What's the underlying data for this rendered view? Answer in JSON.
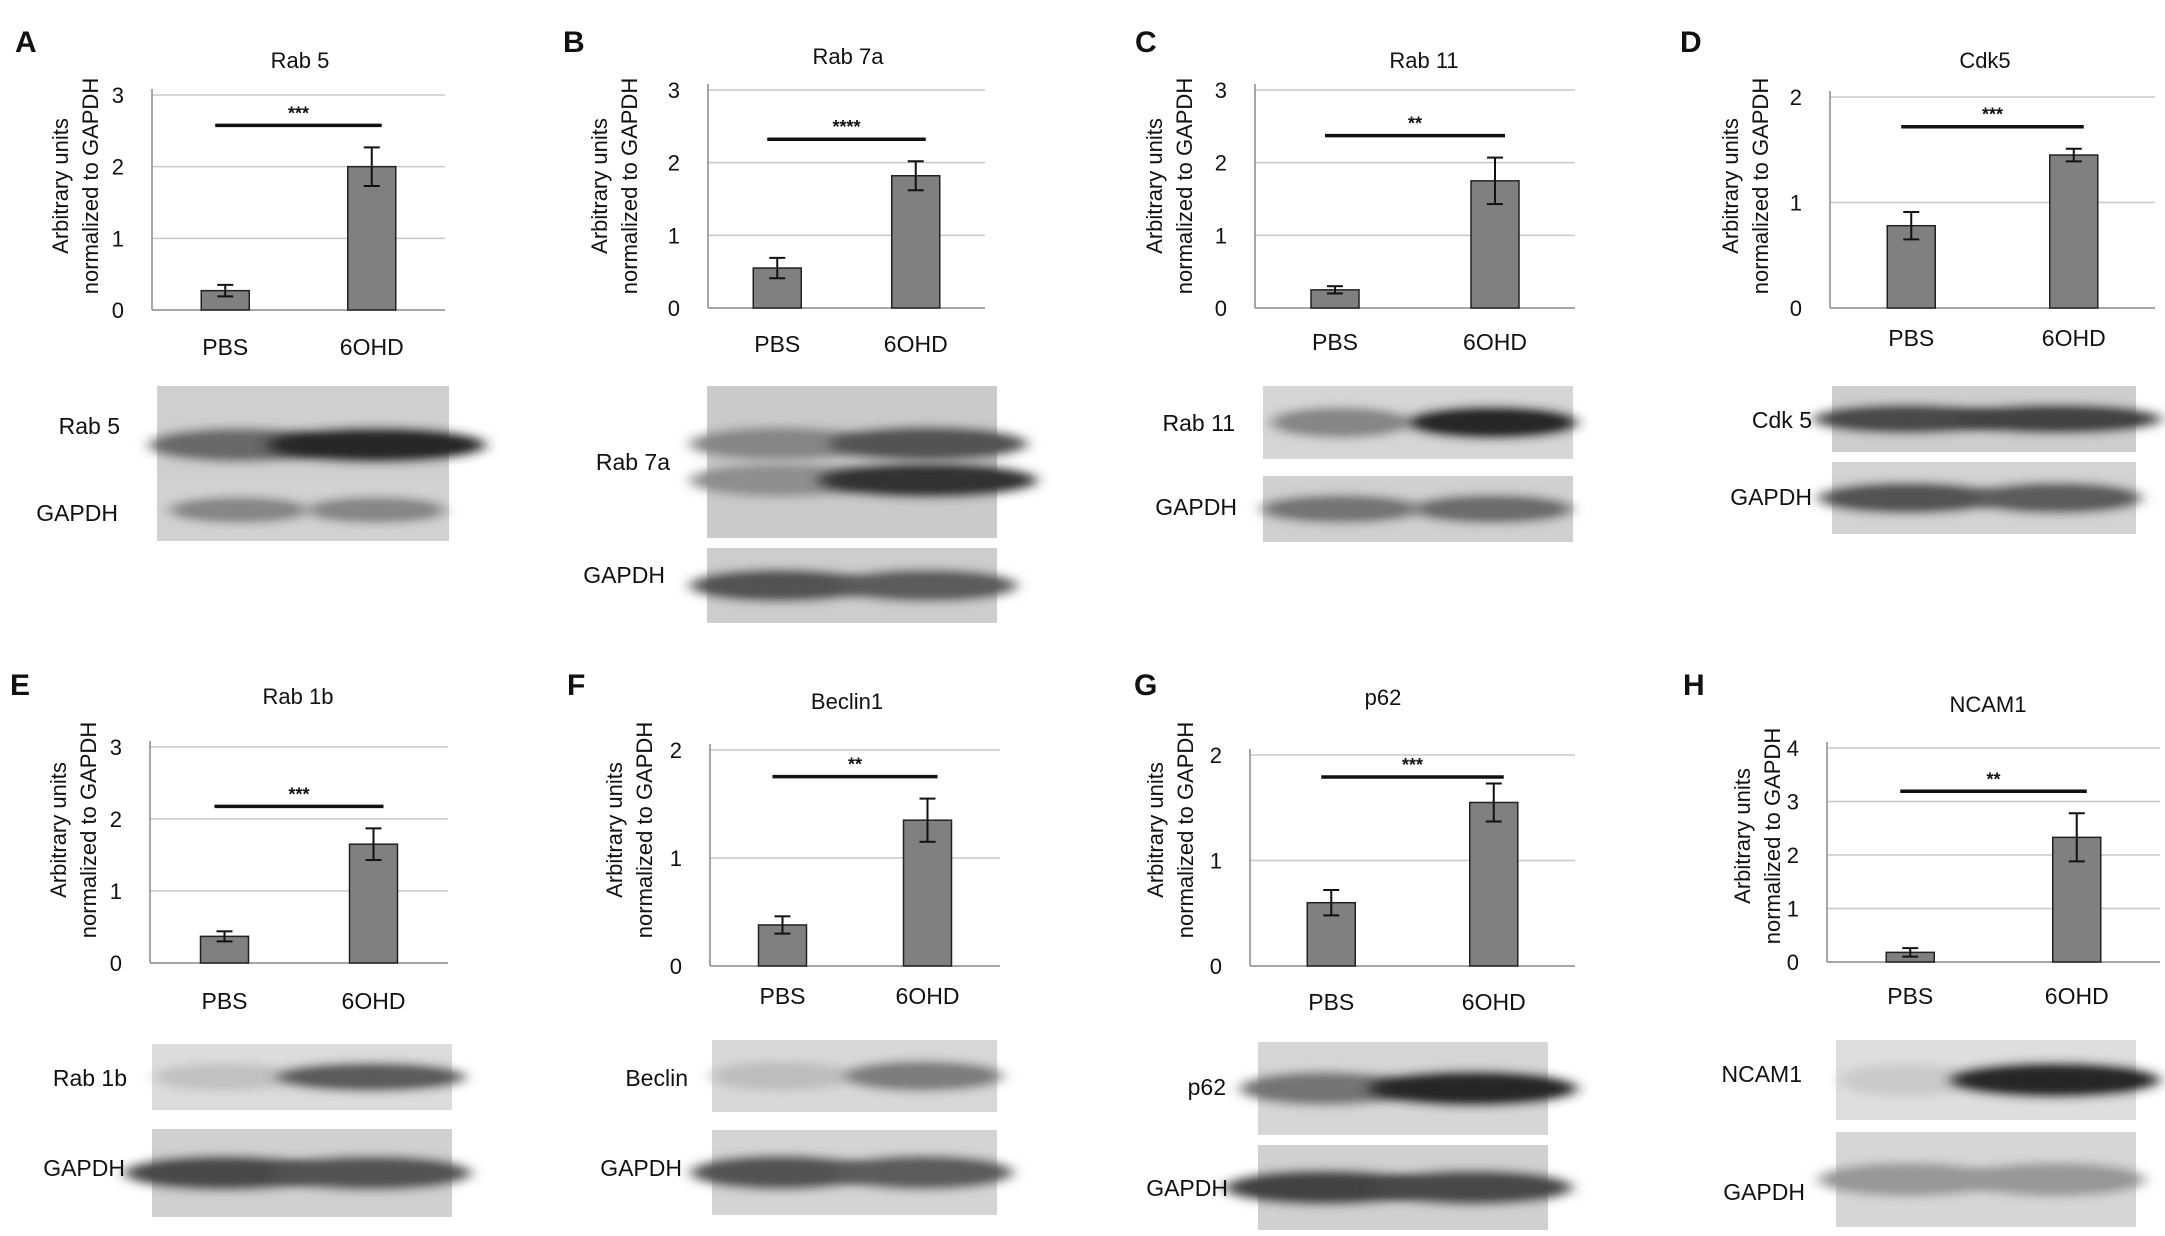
{
  "panels": [
    {
      "letter": "A",
      "blots": [
        {
          "label": "Rab 5"
        },
        {
          "label": "GAPDH"
        }
      ]
    },
    {
      "letter": "B",
      "blots": [
        {
          "label": "Rab 7a"
        },
        {
          "label": "GAPDH"
        }
      ]
    },
    {
      "letter": "C",
      "blots": [
        {
          "label": "Rab 11"
        },
        {
          "label": "GAPDH"
        }
      ]
    },
    {
      "letter": "D",
      "blots": [
        {
          "label": "Cdk 5"
        },
        {
          "label": "GAPDH"
        }
      ]
    },
    {
      "letter": "E",
      "blots": [
        {
          "label": "Rab 1b"
        },
        {
          "label": "GAPDH"
        }
      ]
    },
    {
      "letter": "F",
      "blots": [
        {
          "label": "Beclin"
        },
        {
          "label": "GAPDH"
        }
      ]
    },
    {
      "letter": "G",
      "blots": [
        {
          "label": "p62"
        },
        {
          "label": "GAPDH"
        }
      ]
    },
    {
      "letter": "H",
      "blots": [
        {
          "label": "NCAM1"
        },
        {
          "label": "GAPDH"
        }
      ]
    }
  ],
  "chart_data": [
    {
      "type": "bar",
      "title": "Rab 5",
      "ylabel": "Arbitrary units\nnormalized to GAPDH",
      "categories": [
        "PBS",
        "6OHD"
      ],
      "values": [
        0.27,
        2.0
      ],
      "errors": [
        0.08,
        0.27
      ],
      "ylim": [
        0,
        3
      ],
      "yticks": [
        0,
        1,
        2,
        3
      ],
      "grid": true,
      "significance": "***"
    },
    {
      "type": "bar",
      "title": "Rab 7a",
      "ylabel": "Arbitrary units\nnormalized to GAPDH",
      "categories": [
        "PBS",
        "6OHD"
      ],
      "values": [
        0.55,
        1.82
      ],
      "errors": [
        0.14,
        0.2
      ],
      "ylim": [
        0,
        3
      ],
      "yticks": [
        0,
        1,
        2,
        3
      ],
      "grid": true,
      "significance": "****"
    },
    {
      "type": "bar",
      "title": "Rab 11",
      "ylabel": "Arbitrary units\nnormalized to GAPDH",
      "categories": [
        "PBS",
        "6OHD"
      ],
      "values": [
        0.25,
        1.75
      ],
      "errors": [
        0.05,
        0.32
      ],
      "ylim": [
        0,
        3
      ],
      "yticks": [
        0,
        1,
        2,
        3
      ],
      "grid": true,
      "significance": "**"
    },
    {
      "type": "bar",
      "title": "Cdk5",
      "ylabel": "Arbitrary units\nnormalized to GAPDH",
      "categories": [
        "PBS",
        "6OHD"
      ],
      "values": [
        0.78,
        1.45
      ],
      "errors": [
        0.13,
        0.06
      ],
      "ylim": [
        0,
        2
      ],
      "yticks": [
        0,
        1,
        2
      ],
      "grid": true,
      "significance": "***"
    },
    {
      "type": "bar",
      "title": "Rab 1b",
      "ylabel": "Arbitrary units\nnormalized to GAPDH",
      "categories": [
        "PBS",
        "6OHD"
      ],
      "values": [
        0.37,
        1.65
      ],
      "errors": [
        0.07,
        0.22
      ],
      "ylim": [
        0,
        3
      ],
      "yticks": [
        0,
        1,
        2,
        3
      ],
      "grid": true,
      "significance": "***"
    },
    {
      "type": "bar",
      "title": "Beclin1",
      "ylabel": "Arbitrary units\nnormalized to GAPDH",
      "categories": [
        "PBS",
        "6OHD"
      ],
      "values": [
        0.38,
        1.35
      ],
      "errors": [
        0.08,
        0.2
      ],
      "ylim": [
        0,
        2
      ],
      "yticks": [
        0,
        1,
        2
      ],
      "grid": true,
      "significance": "**"
    },
    {
      "type": "bar",
      "title": "p62",
      "ylabel": "Arbitrary units\nnormalized to GAPDH",
      "categories": [
        "PBS",
        "6OHD"
      ],
      "values": [
        0.6,
        1.55
      ],
      "errors": [
        0.12,
        0.18
      ],
      "ylim": [
        0,
        2
      ],
      "yticks": [
        0,
        1,
        2
      ],
      "grid": true,
      "significance": "***"
    },
    {
      "type": "bar",
      "title": "NCAM1",
      "ylabel": "Arbitrary units\nnormalized to GAPDH",
      "categories": [
        "PBS",
        "6OHD"
      ],
      "values": [
        0.18,
        2.33
      ],
      "errors": [
        0.08,
        0.45
      ],
      "ylim": [
        0,
        4
      ],
      "yticks": [
        0,
        1,
        2,
        3,
        4
      ],
      "grid": true,
      "significance": "**"
    }
  ]
}
